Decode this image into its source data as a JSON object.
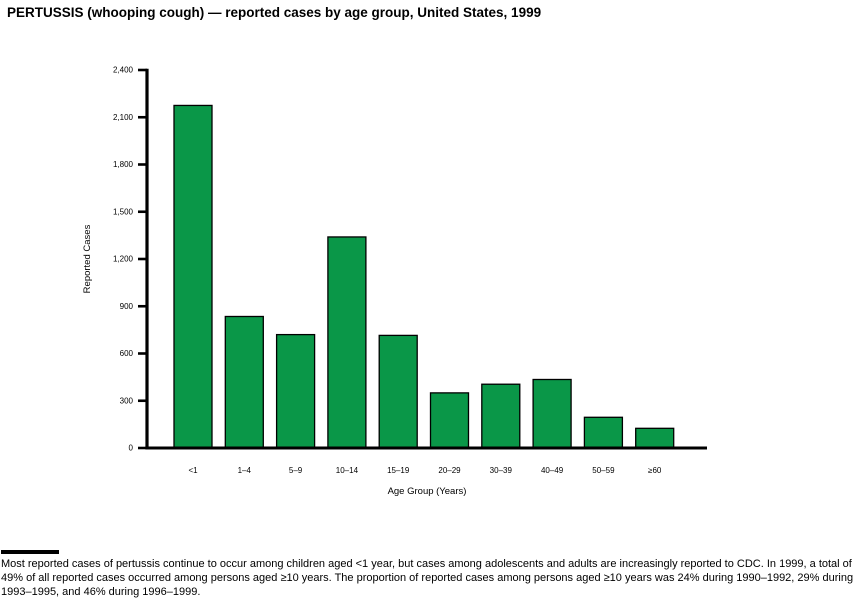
{
  "title": "PERTUSSIS (whooping cough) — reported cases by age group, United States, 1999",
  "chart_data": {
    "type": "bar",
    "categories": [
      "<1",
      "1–4",
      "5–9",
      "10–14",
      "15–19",
      "20–29",
      "30–39",
      "40–49",
      "50–59",
      "≥60"
    ],
    "values": [
      2175,
      835,
      720,
      1340,
      715,
      350,
      405,
      435,
      195,
      125
    ],
    "title": "PERTUSSIS (whooping cough) — reported cases by age group, United States, 1999",
    "xlabel": "Age Group (Years)",
    "ylabel": "Reported Cases",
    "ylim": [
      0,
      2400
    ],
    "ytick_step": 300,
    "ytick_labels": [
      "0",
      "300",
      "600",
      "900",
      "1,200",
      "1,500",
      "1,800",
      "2,100",
      "2,400"
    ],
    "bar_color": "#0A9748",
    "bar_border_color": "#000000",
    "axis_color": "#000000",
    "grid": false,
    "legend_position": "none"
  },
  "footnote": {
    "text": "Most reported cases of pertussis continue to occur among children aged <1 year, but cases among adolescents and adults are increasingly reported to CDC. In 1999, a total of 49% of all reported cases occurred among persons aged ≥10 years. The proportion of reported cases among persons aged ≥10 years was 24% during 1990–1992, 29% during 1993–1995, and 46% during 1996–1999."
  }
}
